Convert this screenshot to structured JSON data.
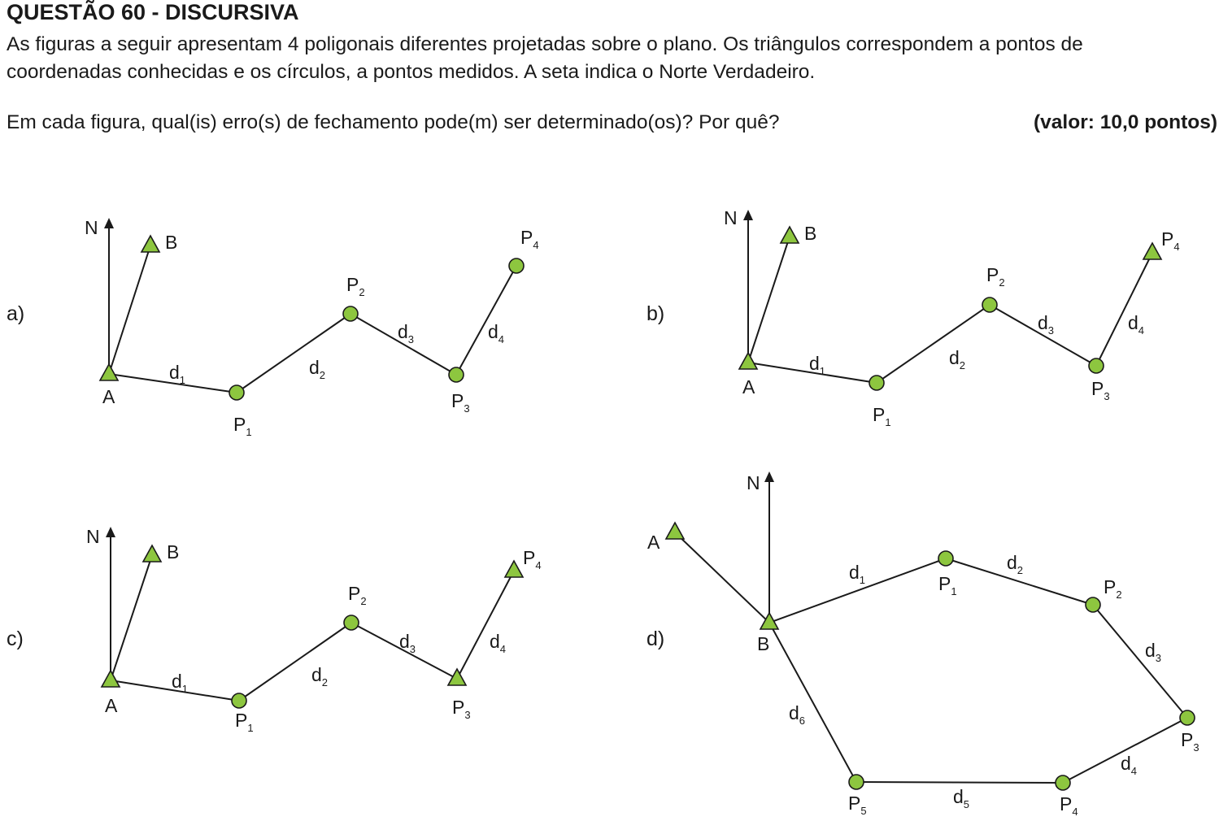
{
  "header": {
    "title": "QUESTÃO  60 - DISCURSIVA",
    "intro_line1": "As figuras a seguir apresentam 4 poligonais diferentes projetadas sobre o plano. Os triângulos correspondem a pontos de",
    "intro_line2": "coordenadas conhecidas e os círculos, a pontos medidos. A seta indica o Norte Verdadeiro.",
    "question": "Em cada figura, qual(is) erro(s) de fechamento pode(m) ser determinado(os)? Por quê?",
    "value": "(valor: 10,0 pontos)"
  },
  "figures": [
    {
      "id": "a",
      "label": "a)",
      "north": "N",
      "points": [
        {
          "name": "A",
          "sub": "",
          "marker": "triangle"
        },
        {
          "name": "B",
          "sub": "",
          "marker": "triangle"
        },
        {
          "name": "P",
          "sub": "1",
          "marker": "circle"
        },
        {
          "name": "P",
          "sub": "2",
          "marker": "circle"
        },
        {
          "name": "P",
          "sub": "3",
          "marker": "circle"
        },
        {
          "name": "P",
          "sub": "4",
          "marker": "circle"
        }
      ],
      "distances": [
        {
          "name": "d",
          "sub": "1"
        },
        {
          "name": "d",
          "sub": "2"
        },
        {
          "name": "d",
          "sub": "3"
        },
        {
          "name": "d",
          "sub": "4"
        }
      ]
    },
    {
      "id": "b",
      "label": "b)",
      "north": "N",
      "points": [
        {
          "name": "A",
          "sub": "",
          "marker": "triangle"
        },
        {
          "name": "B",
          "sub": "",
          "marker": "triangle"
        },
        {
          "name": "P",
          "sub": "1",
          "marker": "circle"
        },
        {
          "name": "P",
          "sub": "2",
          "marker": "circle"
        },
        {
          "name": "P",
          "sub": "3",
          "marker": "circle"
        },
        {
          "name": "P",
          "sub": "4",
          "marker": "triangle"
        }
      ],
      "distances": [
        {
          "name": "d",
          "sub": "1"
        },
        {
          "name": "d",
          "sub": "2"
        },
        {
          "name": "d",
          "sub": "3"
        },
        {
          "name": "d",
          "sub": "4"
        }
      ]
    },
    {
      "id": "c",
      "label": "c)",
      "north": "N",
      "points": [
        {
          "name": "A",
          "sub": "",
          "marker": "triangle"
        },
        {
          "name": "B",
          "sub": "",
          "marker": "triangle"
        },
        {
          "name": "P",
          "sub": "1",
          "marker": "circle"
        },
        {
          "name": "P",
          "sub": "2",
          "marker": "circle"
        },
        {
          "name": "P",
          "sub": "3",
          "marker": "triangle"
        },
        {
          "name": "P",
          "sub": "4",
          "marker": "triangle"
        }
      ],
      "distances": [
        {
          "name": "d",
          "sub": "1"
        },
        {
          "name": "d",
          "sub": "2"
        },
        {
          "name": "d",
          "sub": "3"
        },
        {
          "name": "d",
          "sub": "4"
        }
      ]
    },
    {
      "id": "d",
      "label": "d)",
      "north": "N",
      "points": [
        {
          "name": "A",
          "sub": "",
          "marker": "triangle"
        },
        {
          "name": "B",
          "sub": "",
          "marker": "triangle"
        },
        {
          "name": "P",
          "sub": "1",
          "marker": "circle"
        },
        {
          "name": "P",
          "sub": "2",
          "marker": "circle"
        },
        {
          "name": "P",
          "sub": "3",
          "marker": "circle"
        },
        {
          "name": "P",
          "sub": "4",
          "marker": "circle"
        },
        {
          "name": "P",
          "sub": "5",
          "marker": "circle"
        }
      ],
      "distances": [
        {
          "name": "d",
          "sub": "1"
        },
        {
          "name": "d",
          "sub": "2"
        },
        {
          "name": "d",
          "sub": "3"
        },
        {
          "name": "d",
          "sub": "4"
        },
        {
          "name": "d",
          "sub": "5"
        },
        {
          "name": "d",
          "sub": "6"
        }
      ]
    }
  ],
  "colors": {
    "marker_fill": "#8dc63f",
    "stroke": "#1a1a1a"
  }
}
